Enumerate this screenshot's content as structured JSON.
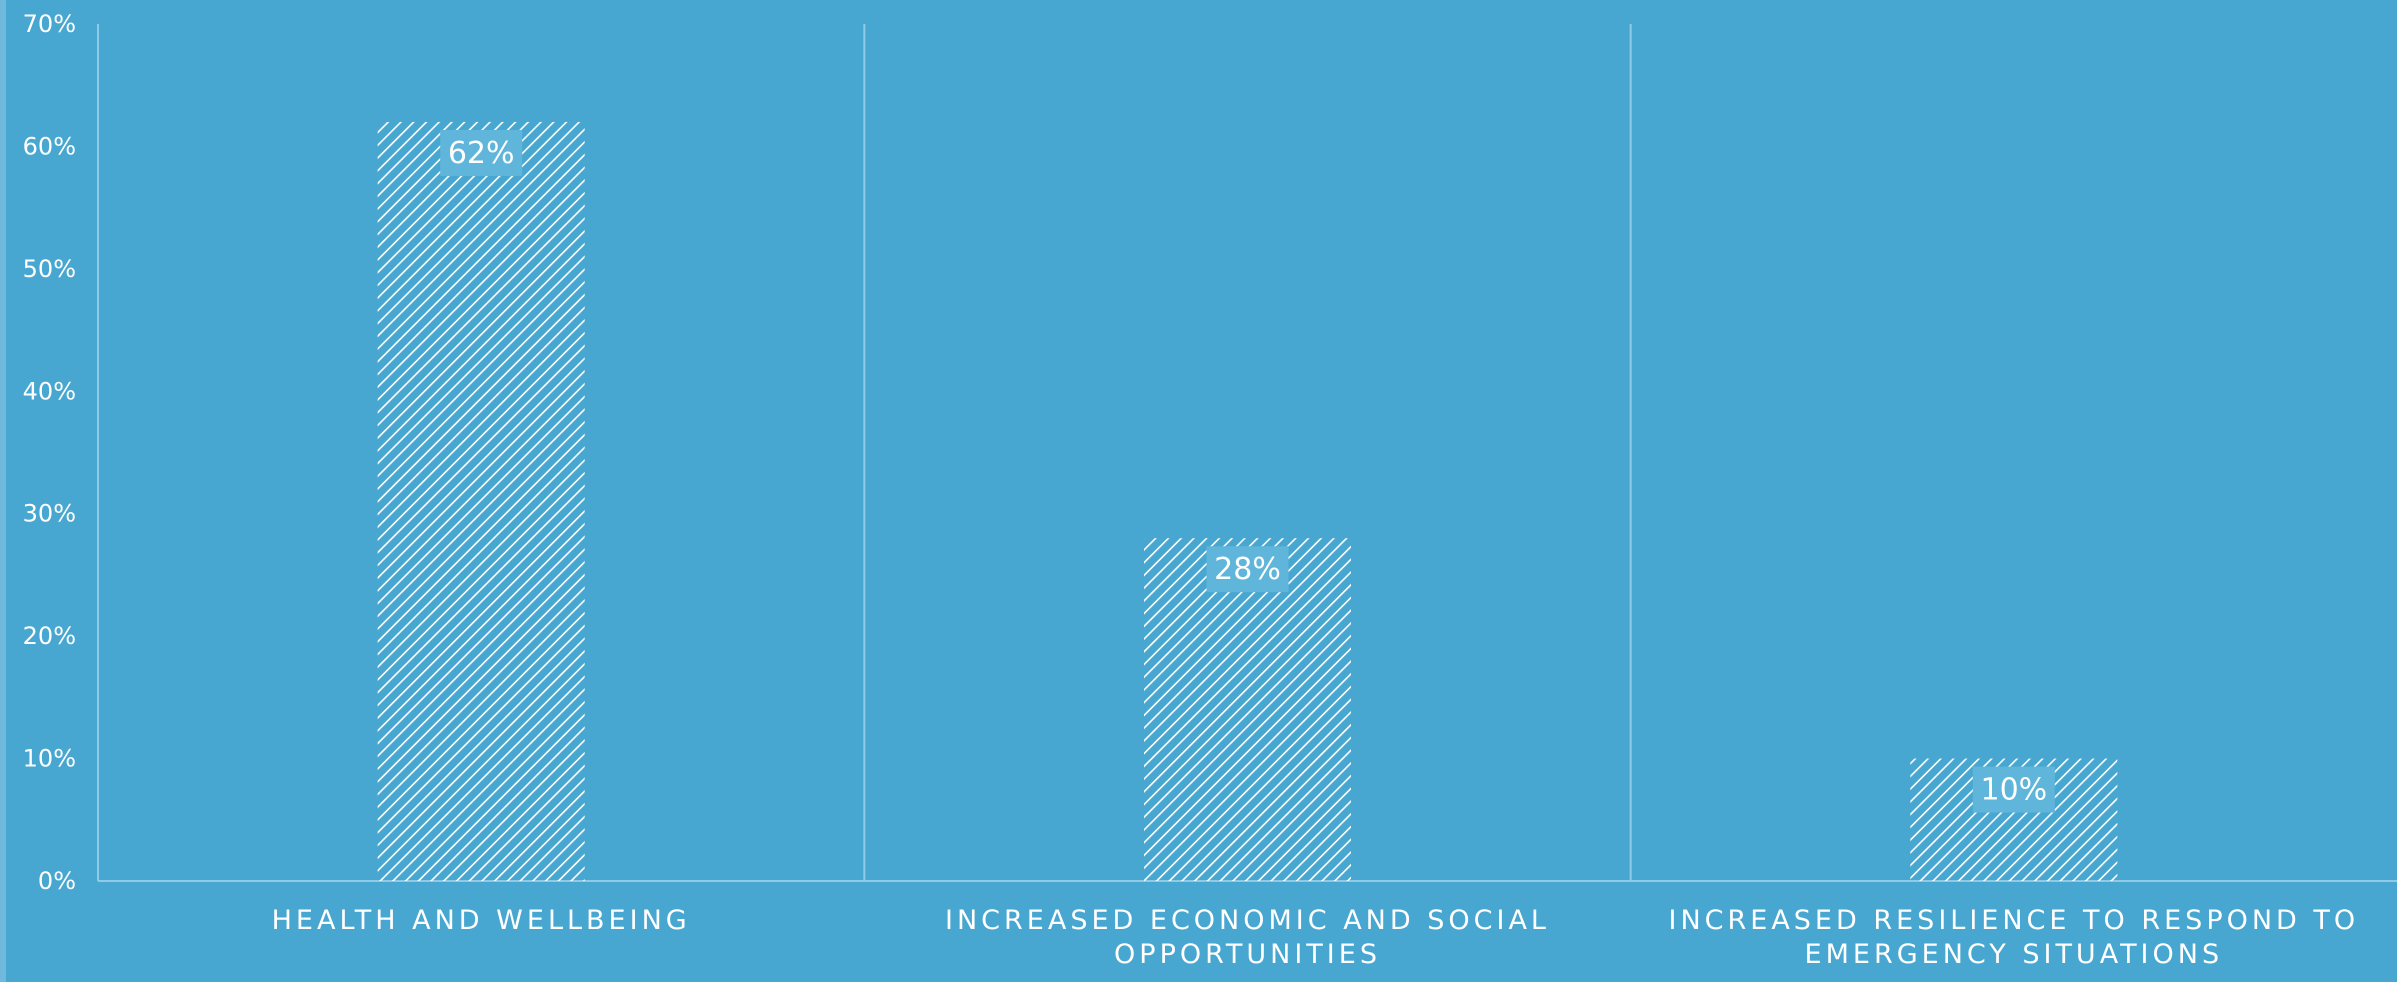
{
  "chart_data": {
    "type": "bar",
    "title": "",
    "xlabel": "",
    "ylabel": "",
    "categories": [
      [
        "HEALTH AND WELLBEING"
      ],
      [
        "INCREASED ECONOMIC AND SOCIAL",
        "OPPORTUNITIES"
      ],
      [
        "INCREASED RESILIENCE TO RESPOND TO",
        "EMERGENCY SITUATIONS"
      ]
    ],
    "values": [
      62,
      28,
      10
    ],
    "data_labels": [
      "62%",
      "28%",
      "10%"
    ],
    "ylim": [
      0,
      70
    ],
    "yticks": [
      0,
      10,
      20,
      30,
      40,
      50,
      60,
      70
    ],
    "ytick_labels": [
      "0%",
      "10%",
      "20%",
      "30%",
      "40%",
      "50%",
      "60%",
      "70%"
    ],
    "bar_fill": "diagonal-hatch",
    "grid": "vertical-category-separators",
    "legend": "none"
  },
  "colors": {
    "background": "#48a7d0",
    "bar_hatch": "#ffffff",
    "axis_line": "#8fcae6",
    "label_box": "#5fb5da",
    "text": "#ffffff"
  }
}
